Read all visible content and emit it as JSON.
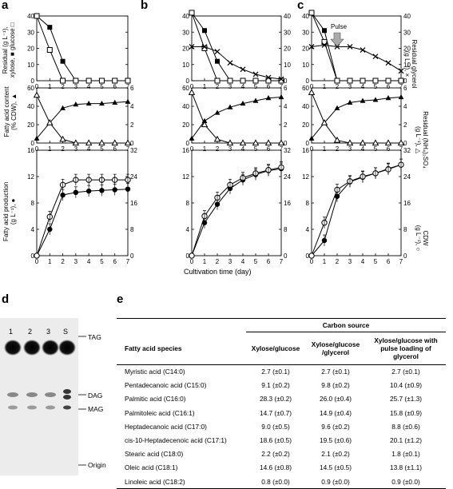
{
  "panel_labels": {
    "a": "a",
    "b": "b",
    "c": "c",
    "d": "d",
    "e": "e"
  },
  "shared_xlabel": "Cultivation time (day)",
  "ylabels": {
    "row1_left_a": "Residual (g L⁻¹),",
    "row1_left_b": "xylose, ■ glucose □",
    "row1_right_a": "Residual glycerol",
    "row1_right_b": "(g L⁻¹), ×",
    "row2_left_a": "Fatty acid content",
    "row2_left_b": "(% CDW), ▲",
    "row2_right_a": "Residual (NH₄)₂SO₄",
    "row2_right_b": "(g L⁻¹), △",
    "row3_left_a": "Fatty acid production",
    "row3_left_b": "(g L⁻¹), ●",
    "row3_right_a": "CDW",
    "row3_right_b": "(g L⁻¹), ○"
  },
  "pulse_label": "Pulse",
  "chart_data": [
    {
      "panel": "a",
      "row": 1,
      "type": "line",
      "xlim": [
        0,
        7
      ],
      "ylim": [
        0,
        40
      ],
      "series": [
        {
          "name": "xylose",
          "marker": "filled-square",
          "x": [
            0,
            1,
            2,
            3,
            4,
            5,
            6,
            7
          ],
          "y": [
            40,
            33,
            12,
            0,
            0,
            0,
            0,
            0
          ]
        },
        {
          "name": "glucose",
          "marker": "open-square",
          "x": [
            0,
            1,
            2,
            3,
            4,
            5,
            6,
            7
          ],
          "y": [
            40,
            19,
            0,
            0,
            0,
            0,
            0,
            0
          ]
        }
      ]
    },
    {
      "panel": "a",
      "row": 2,
      "type": "line",
      "xlim": [
        0,
        7
      ],
      "ylim": [
        0,
        60
      ],
      "y2lim": [
        0,
        6
      ],
      "series": [
        {
          "name": "fatty acid content",
          "marker": "filled-triangle",
          "axis": "left",
          "x": [
            0,
            1,
            2,
            3,
            4,
            5,
            6,
            7
          ],
          "y": [
            5,
            22,
            38,
            42,
            43,
            43,
            44,
            45
          ]
        },
        {
          "name": "(NH4)2SO4",
          "marker": "open-triangle",
          "axis": "right",
          "x": [
            0,
            1,
            2,
            3,
            4,
            5,
            6,
            7
          ],
          "y": [
            5.2,
            2.2,
            0.4,
            0,
            0,
            0,
            0,
            0
          ]
        }
      ]
    },
    {
      "panel": "a",
      "row": 3,
      "type": "line",
      "xlim": [
        0,
        7
      ],
      "ylim": [
        0,
        16
      ],
      "y2lim": [
        0,
        32
      ],
      "series": [
        {
          "name": "fatty acid production",
          "marker": "filled-circle",
          "axis": "left",
          "x": [
            0,
            1,
            2,
            3,
            4,
            5,
            6,
            7
          ],
          "y": [
            0,
            4.0,
            9.2,
            9.6,
            9.8,
            9.9,
            10.0,
            10.1
          ]
        },
        {
          "name": "CDW",
          "marker": "open-circle",
          "axis": "right",
          "x": [
            0,
            1,
            2,
            3,
            4,
            5,
            6,
            7
          ],
          "y": [
            0,
            11.8,
            21.5,
            23.0,
            23.0,
            23.0,
            23.0,
            23.0
          ]
        }
      ]
    },
    {
      "panel": "b",
      "row": 1,
      "type": "line",
      "xlim": [
        0,
        7
      ],
      "ylim": [
        0,
        40
      ],
      "series": [
        {
          "name": "xylose",
          "marker": "filled-square",
          "x": [
            0,
            1,
            2,
            3,
            4,
            5,
            6,
            7
          ],
          "y": [
            42,
            31,
            12,
            0,
            0,
            0,
            0,
            0
          ]
        },
        {
          "name": "glucose",
          "marker": "open-square",
          "x": [
            0,
            1,
            2,
            3,
            4,
            5,
            6,
            7
          ],
          "y": [
            42,
            20,
            0,
            0,
            0,
            0,
            0,
            0
          ]
        },
        {
          "name": "glycerol",
          "marker": "cross",
          "x": [
            0,
            1,
            2,
            3,
            4,
            5,
            6,
            7
          ],
          "y": [
            21,
            21,
            18,
            11,
            7,
            4,
            2,
            1
          ]
        }
      ]
    },
    {
      "panel": "b",
      "row": 2,
      "type": "line",
      "xlim": [
        0,
        7
      ],
      "ylim": [
        0,
        60
      ],
      "y2lim": [
        0,
        6
      ],
      "series": [
        {
          "name": "fatty acid content",
          "marker": "filled-triangle",
          "axis": "left",
          "x": [
            0,
            1,
            2,
            3,
            4,
            5,
            6,
            7
          ],
          "y": [
            5,
            24,
            33,
            39,
            43,
            46,
            49,
            50
          ]
        },
        {
          "name": "(NH4)2SO4",
          "marker": "open-triangle",
          "axis": "right",
          "x": [
            0,
            1,
            2,
            3,
            4,
            5,
            6,
            7
          ],
          "y": [
            5.5,
            2.0,
            0.4,
            0,
            0,
            0,
            0,
            0
          ]
        }
      ]
    },
    {
      "panel": "b",
      "row": 3,
      "type": "line",
      "xlim": [
        0,
        7
      ],
      "ylim": [
        0,
        16
      ],
      "y2lim": [
        0,
        32
      ],
      "series": [
        {
          "name": "fatty acid production",
          "marker": "filled-circle",
          "axis": "left",
          "x": [
            0,
            1,
            2,
            3,
            4,
            5,
            6,
            7
          ],
          "y": [
            0,
            5.0,
            7.8,
            10.2,
            11.5,
            12.3,
            12.9,
            13.2
          ]
        },
        {
          "name": "CDW",
          "marker": "open-circle",
          "axis": "right",
          "x": [
            0,
            1,
            2,
            3,
            4,
            5,
            6,
            7
          ],
          "y": [
            0,
            12.0,
            17.6,
            21.5,
            23.6,
            25.0,
            26.0,
            26.8
          ]
        }
      ]
    },
    {
      "panel": "c",
      "row": 1,
      "type": "line",
      "xlim": [
        0,
        7
      ],
      "ylim": [
        0,
        40
      ],
      "series": [
        {
          "name": "xylose",
          "marker": "filled-square",
          "x": [
            0,
            1,
            2,
            3,
            4,
            5,
            6,
            7
          ],
          "y": [
            42,
            31,
            0,
            0,
            0,
            0,
            0,
            0
          ]
        },
        {
          "name": "glucose",
          "marker": "open-square",
          "x": [
            0,
            1,
            2,
            3,
            4,
            5,
            6,
            7
          ],
          "y": [
            42,
            24,
            0,
            0,
            0,
            0,
            0,
            0
          ]
        },
        {
          "name": "glycerol",
          "marker": "cross",
          "x": [
            0,
            1,
            2,
            3,
            4,
            5,
            6,
            7
          ],
          "y": [
            21,
            22,
            21,
            21,
            19,
            15,
            11,
            6
          ]
        }
      ]
    },
    {
      "panel": "c",
      "row": 2,
      "type": "line",
      "xlim": [
        0,
        7
      ],
      "ylim": [
        0,
        60
      ],
      "y2lim": [
        0,
        6
      ],
      "series": [
        {
          "name": "fatty acid content",
          "marker": "filled-triangle",
          "axis": "left",
          "x": [
            0,
            1,
            2,
            3,
            4,
            5,
            6,
            7
          ],
          "y": [
            5,
            22,
            38,
            44,
            46,
            47,
            49,
            50
          ]
        },
        {
          "name": "(NH4)2SO4",
          "marker": "open-triangle",
          "axis": "right",
          "x": [
            0,
            1,
            2,
            3,
            4,
            5,
            6,
            7
          ],
          "y": [
            5.5,
            2.2,
            0.3,
            0,
            0,
            0,
            0,
            0
          ]
        }
      ]
    },
    {
      "panel": "c",
      "row": 3,
      "type": "line",
      "xlim": [
        0,
        7
      ],
      "ylim": [
        0,
        16
      ],
      "y2lim": [
        0,
        32
      ],
      "series": [
        {
          "name": "fatty acid production",
          "marker": "filled-circle",
          "axis": "left",
          "x": [
            0,
            1,
            2,
            3,
            4,
            5,
            6,
            7
          ],
          "y": [
            0,
            2.3,
            9.0,
            11.2,
            11.9,
            12.5,
            13.2,
            13.8
          ]
        },
        {
          "name": "CDW",
          "marker": "open-circle",
          "axis": "right",
          "x": [
            0,
            1,
            2,
            3,
            4,
            5,
            6,
            7
          ],
          "y": [
            0,
            10.0,
            20.0,
            22.6,
            24.0,
            25.0,
            26.2,
            27.6
          ]
        }
      ]
    }
  ],
  "tlc": {
    "lane_labels": [
      "1",
      "2",
      "3",
      "S"
    ],
    "band_labels": [
      "TAG",
      "DAG",
      "MAG",
      "Origin"
    ]
  },
  "table": {
    "header_group": "Carbon source",
    "species_header": "Fatty acid species",
    "col_headers": [
      "Xylose/glucose",
      "Xylose/glucose /glycerol",
      "Xylose/glucose with pulse loading of glycerol"
    ],
    "rows": [
      {
        "species": "Myristic acid (C14:0)",
        "v1": "2.7 (±0.1)",
        "v2": "2.7 (±0.1)",
        "v3": "2.7 (±0.1)"
      },
      {
        "species": "Pentadecanoic acid (C15:0)",
        "v1": "9.1 (±0.2)",
        "v2": "9.8 (±0.2)",
        "v3": "10.4 (±0.9)"
      },
      {
        "species": "Palmitic acid (C16:0)",
        "v1": "28.3 (±0.2)",
        "v2": "26.0 (±0.4)",
        "v3": "25.7 (±1.3)"
      },
      {
        "species": "Palmitoleic acid (C16:1)",
        "v1": "14.7 (±0.7)",
        "v2": "14.9 (±0.4)",
        "v3": "15.8 (±0.9)"
      },
      {
        "species": "Heptadecanoic acid (C17:0)",
        "v1": "9.0 (±0.5)",
        "v2": "9.6 (±0.2)",
        "v3": "8.8 (±0.6)"
      },
      {
        "species": "cis-10-Heptadecenoic acid (C17:1)",
        "v1": "18.6 (±0.5)",
        "v2": "19.5 (±0.6)",
        "v3": "20.1 (±1.2)"
      },
      {
        "species": "Stearic acid (C18:0)",
        "v1": "2.2 (±0.2)",
        "v2": "2.1 (±0.2)",
        "v3": "1.8 (±0.1)"
      },
      {
        "species": "Oleic acid (C18:1)",
        "v1": "14.6 (±0.8)",
        "v2": "14.5 (±0.5)",
        "v3": "13.8 (±1.1)"
      },
      {
        "species": "Linoleic acid (C18:2)",
        "v1": "0.8 (±0.0)",
        "v2": "0.9 (±0.0)",
        "v3": "0.9 (±0.0)"
      }
    ]
  }
}
